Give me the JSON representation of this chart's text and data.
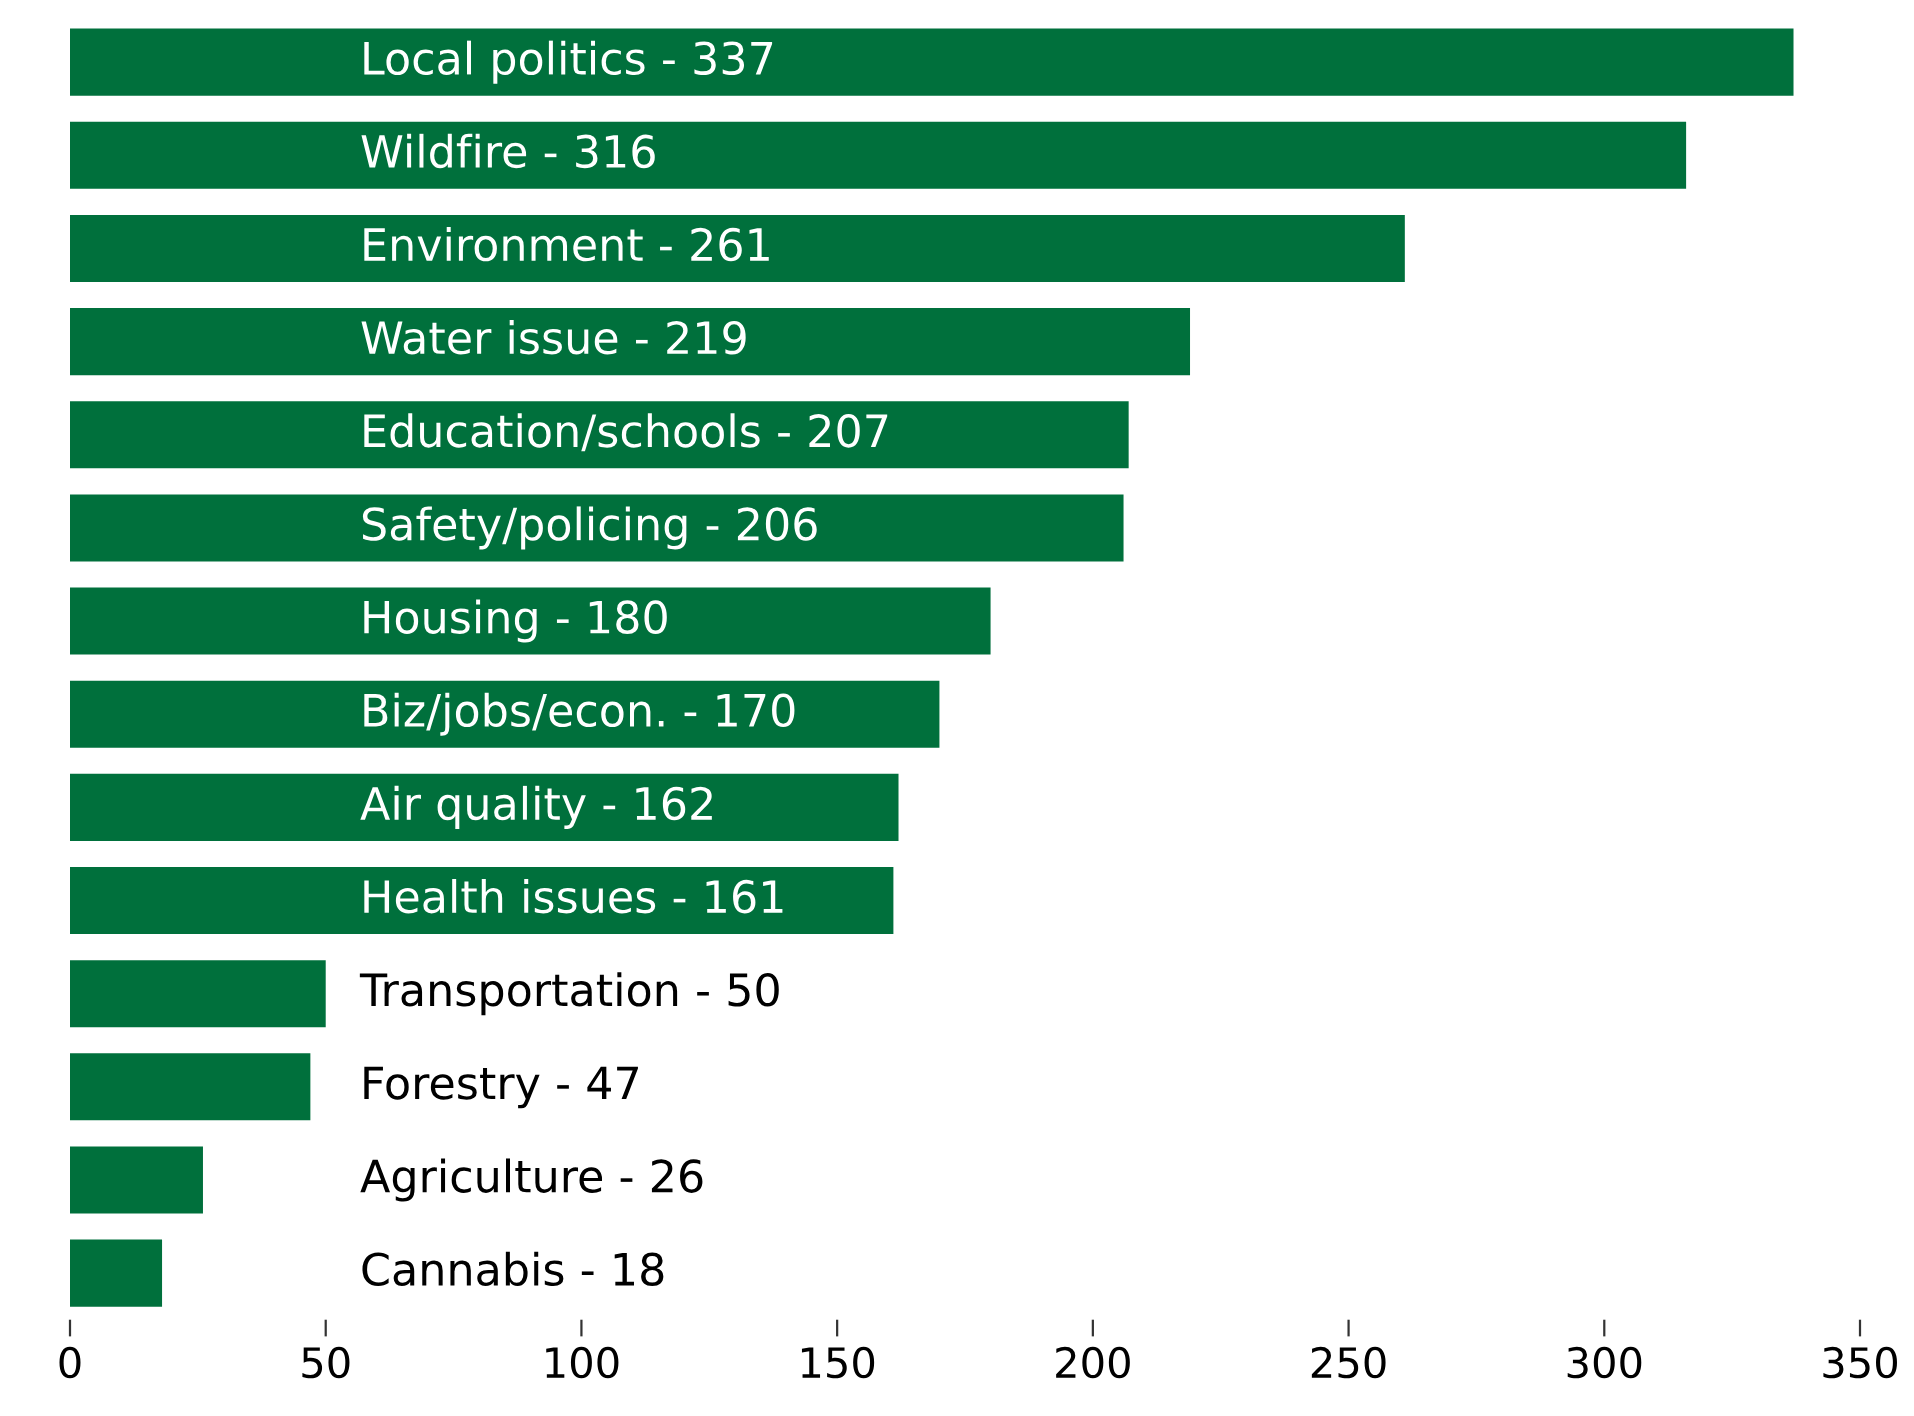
{
  "chart_data": {
    "type": "bar",
    "orientation": "horizontal",
    "categories": [
      "Local politics - 337",
      "Wildfire - 316",
      "Environment - 261",
      "Water issue - 219",
      "Education/schools - 207",
      "Safety/policing - 206",
      "Housing - 180",
      "Biz/jobs/econ. - 170",
      "Air quality - 162",
      "Health issues - 161",
      "Transportation - 50",
      "Forestry - 47",
      "Agriculture - 26",
      "Cannabis - 18"
    ],
    "values": [
      337,
      316,
      261,
      219,
      207,
      206,
      180,
      170,
      162,
      161,
      50,
      47,
      26,
      18
    ],
    "color": "#00703c",
    "xlim": [
      0,
      350
    ],
    "xticks": [
      0,
      50,
      100,
      150,
      200,
      250,
      300,
      350
    ],
    "grid": false,
    "tick_labels": "x"
  }
}
